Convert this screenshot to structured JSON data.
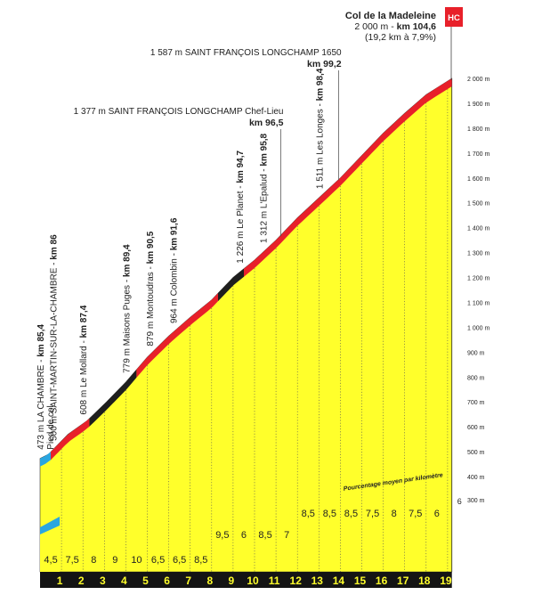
{
  "colors": {
    "fill": "#ffff2b",
    "grade_red": "#e8202a",
    "grade_black": "#1e1e1e",
    "grade_blue": "#2aa6e0",
    "axis_band": "#141414",
    "hc_badge": "#e8202a"
  },
  "summit": {
    "name": "Col de la Madeleine",
    "line2_prefix": "2 000 m - ",
    "line2_km": "km 104,6",
    "line3": "(19,2 km à 7,9%)",
    "category": "HC"
  },
  "avg_label": "Pourcentage moyen par kilomètre",
  "chart_data": {
    "type": "area",
    "x_ticks": [
      "1",
      "2",
      "3",
      "4",
      "5",
      "6",
      "7",
      "8",
      "9",
      "10",
      "11",
      "12",
      "13",
      "14",
      "15",
      "16",
      "17",
      "18",
      "19"
    ],
    "x_final_partial": "19,2",
    "elevation_profile": [
      {
        "x": 0,
        "y": 473
      },
      {
        "x": 0.4,
        "y": 490
      },
      {
        "x": 1.3,
        "y": 570
      },
      {
        "x": 2.2,
        "y": 625
      },
      {
        "x": 3.1,
        "y": 700
      },
      {
        "x": 4.0,
        "y": 780
      },
      {
        "x": 5.0,
        "y": 880
      },
      {
        "x": 6.0,
        "y": 965
      },
      {
        "x": 7.0,
        "y": 1040
      },
      {
        "x": 8.0,
        "y": 1110
      },
      {
        "x": 9.0,
        "y": 1200
      },
      {
        "x": 10.0,
        "y": 1270
      },
      {
        "x": 11.0,
        "y": 1350
      },
      {
        "x": 12.0,
        "y": 1440
      },
      {
        "x": 13.0,
        "y": 1520
      },
      {
        "x": 14.0,
        "y": 1600
      },
      {
        "x": 15.0,
        "y": 1690
      },
      {
        "x": 16.0,
        "y": 1780
      },
      {
        "x": 17.0,
        "y": 1860
      },
      {
        "x": 18.0,
        "y": 1935
      },
      {
        "x": 19.2,
        "y": 2000
      }
    ],
    "km_percentages": [
      "4,5",
      "7,5",
      "8",
      "9",
      "10",
      "6,5",
      "6,5",
      "8,5",
      "9,5",
      "6",
      "8,5",
      "7",
      "8,5",
      "8,5",
      "8,5",
      "7,5",
      "8",
      "7,5",
      "6"
    ],
    "y_ticks": [
      "300 m",
      "400 m",
      "500 m",
      "600 m",
      "700 m",
      "800 m",
      "900 m",
      "1 000 m",
      "1 100 m",
      "1 200 m",
      "1 300 m",
      "1 400 m",
      "1 500 m",
      "1 600 m",
      "1 700 m",
      "1 800 m",
      "1 900 m",
      "2 000 m"
    ],
    "ylim": [
      300,
      2000
    ],
    "grade_segments": [
      {
        "from": 0,
        "to": 0.5,
        "color": "blue"
      },
      {
        "from": 0.5,
        "to": 2.3,
        "color": "red"
      },
      {
        "from": 2.3,
        "to": 4.5,
        "color": "black"
      },
      {
        "from": 4.5,
        "to": 8.3,
        "color": "red"
      },
      {
        "from": 8.3,
        "to": 9.5,
        "color": "black"
      },
      {
        "from": 9.5,
        "to": 19.2,
        "color": "red"
      }
    ],
    "waypoints": [
      {
        "x": 0,
        "text": "473 m LA CHAMBRE - ",
        "km": "km 85,4",
        "sub": "Pied de col"
      },
      {
        "x": 0.6,
        "text": "500 m SAINT-MARTIN-SUR-LA-CHAMBRE - ",
        "km": "km 86"
      },
      {
        "x": 2.0,
        "text": "608 m Le Mollard - ",
        "km": "km 87,4"
      },
      {
        "x": 4.0,
        "text": "779 m Maisons Puges - ",
        "km": "km 89,4"
      },
      {
        "x": 5.1,
        "text": "879 m Montoudras - ",
        "km": "km 90,5"
      },
      {
        "x": 6.2,
        "text": "964 m Colombin - ",
        "km": "km 91,6"
      },
      {
        "x": 9.3,
        "text": "1 226 m Le Planet - ",
        "km": "km 94,7"
      },
      {
        "x": 10.4,
        "text": "1 312 m L'Epalud - ",
        "km": "km 95,8"
      },
      {
        "x": 13.0,
        "text": "1 511 m Les Longes - ",
        "km": "km 98,4"
      }
    ],
    "horizontal_labels": [
      {
        "x": 11.1,
        "text": "1 377 m SAINT FRANÇOIS LONGCHAMP Chef-Lieu",
        "km": "km 96,5"
      },
      {
        "x": 13.8,
        "text": "1 587 m SAINT FRANÇOIS LONGCHAMP 1650",
        "km": "km 99,2"
      }
    ]
  }
}
